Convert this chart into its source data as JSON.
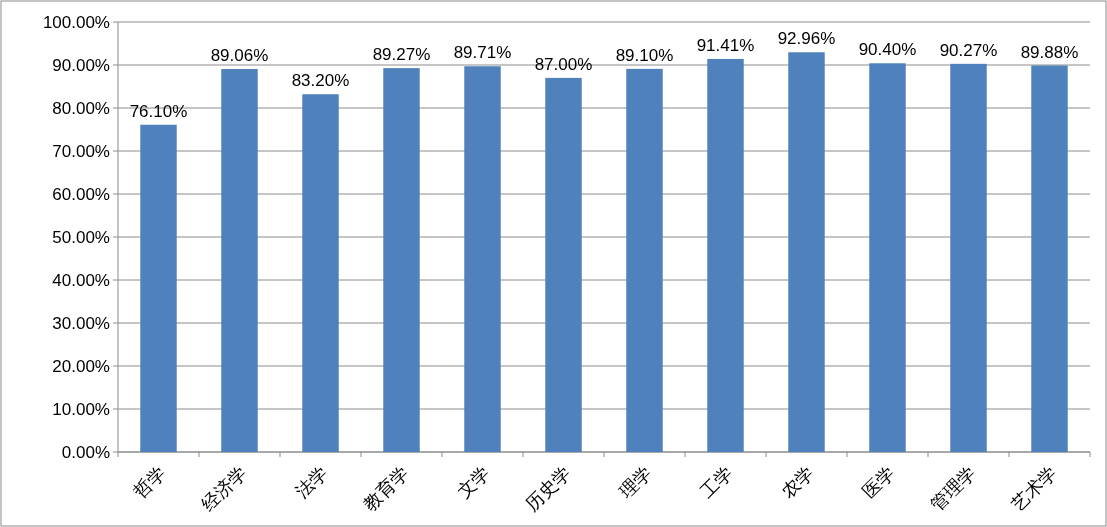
{
  "chart_data": {
    "type": "bar",
    "categories": [
      "哲学",
      "经济学",
      "法学",
      "教育学",
      "文学",
      "历史学",
      "理学",
      "工学",
      "农学",
      "医学",
      "管理学",
      "艺术学"
    ],
    "values": [
      76.1,
      89.06,
      83.2,
      89.27,
      89.71,
      87.0,
      89.1,
      91.41,
      92.96,
      90.4,
      90.27,
      89.88
    ],
    "value_labels": [
      "76.10%",
      "89.06%",
      "83.20%",
      "89.27%",
      "89.71%",
      "87.00%",
      "89.10%",
      "91.41%",
      "92.96%",
      "90.40%",
      "90.27%",
      "89.88%"
    ],
    "color": "#4f81bd",
    "ylim": [
      0,
      100
    ],
    "yticks": [
      {
        "value": 0,
        "label": "0.00%"
      },
      {
        "value": 10,
        "label": "10.00%"
      },
      {
        "value": 20,
        "label": "20.00%"
      },
      {
        "value": 30,
        "label": "30.00%"
      },
      {
        "value": 40,
        "label": "40.00%"
      },
      {
        "value": 50,
        "label": "50.00%"
      },
      {
        "value": 60,
        "label": "60.00%"
      },
      {
        "value": 70,
        "label": "70.00%"
      },
      {
        "value": 80,
        "label": "80.00%"
      },
      {
        "value": 90,
        "label": "90.00%"
      },
      {
        "value": 100,
        "label": "100.00%"
      }
    ],
    "grid": "y"
  }
}
